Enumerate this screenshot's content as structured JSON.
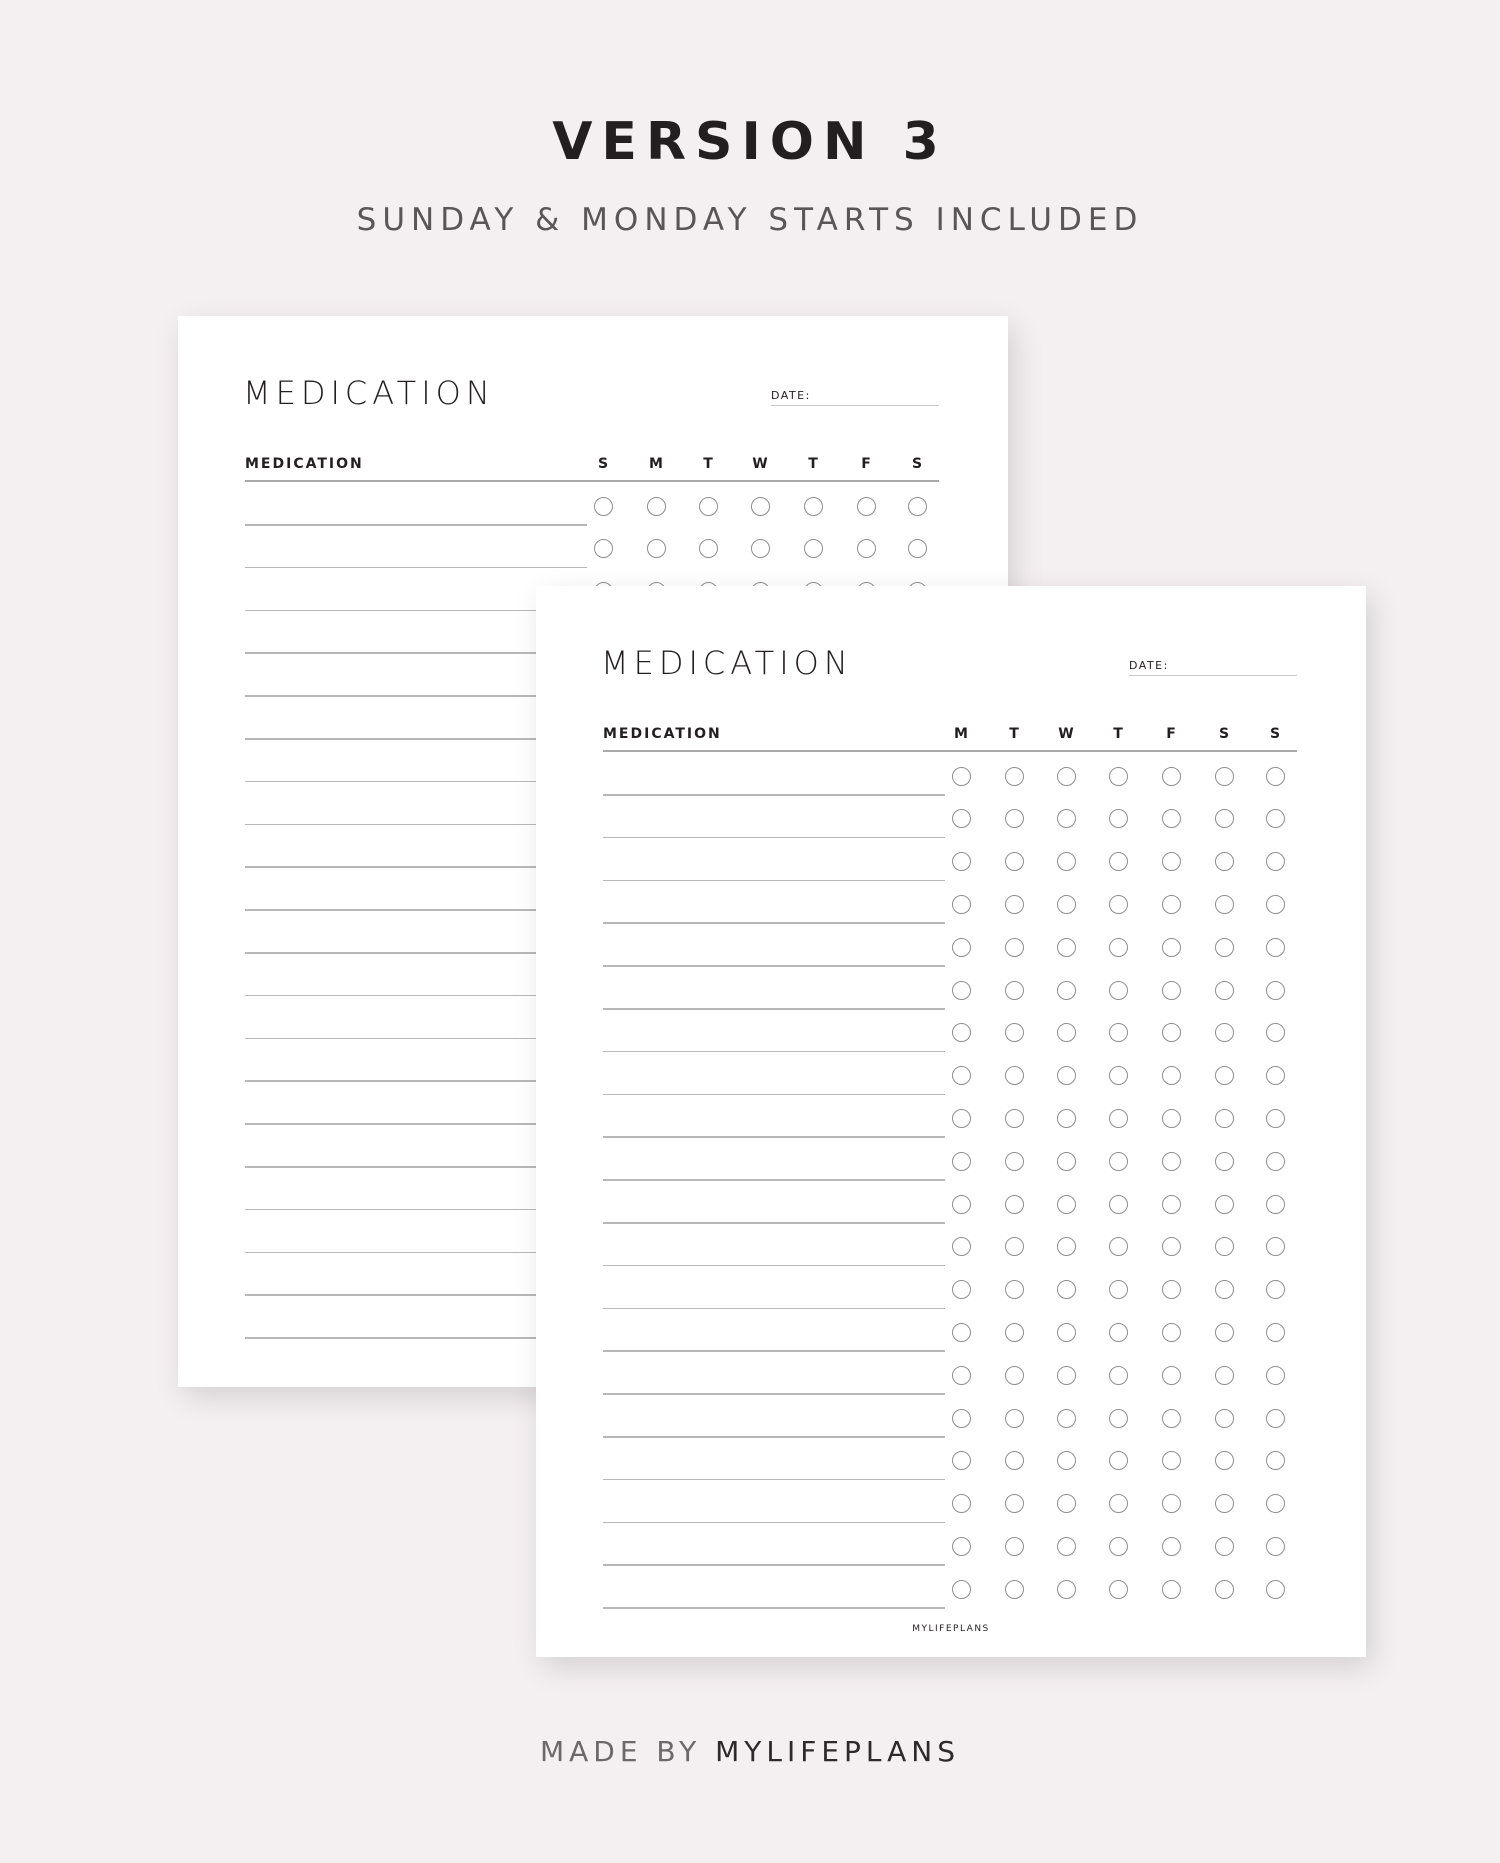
{
  "header": {
    "title": "VERSION 3",
    "subtitle": "SUNDAY & MONDAY STARTS INCLUDED"
  },
  "pages": [
    {
      "variant": "sunday-start",
      "title": "MEDICATION",
      "date_label": "DATE:",
      "column_header": "MEDICATION",
      "days": [
        "S",
        "M",
        "T",
        "W",
        "T",
        "F",
        "S"
      ]
    },
    {
      "variant": "monday-start",
      "title": "MEDICATION",
      "date_label": "DATE:",
      "column_header": "MEDICATION",
      "days": [
        "M",
        "T",
        "W",
        "T",
        "F",
        "S",
        "S"
      ],
      "brand": "MYLIFEPLANS"
    }
  ],
  "footer": {
    "prefix": "MADE BY ",
    "brand": "MYLIFEPLANS"
  },
  "colors": {
    "background": "#f4eff1",
    "text": "#231f20"
  }
}
